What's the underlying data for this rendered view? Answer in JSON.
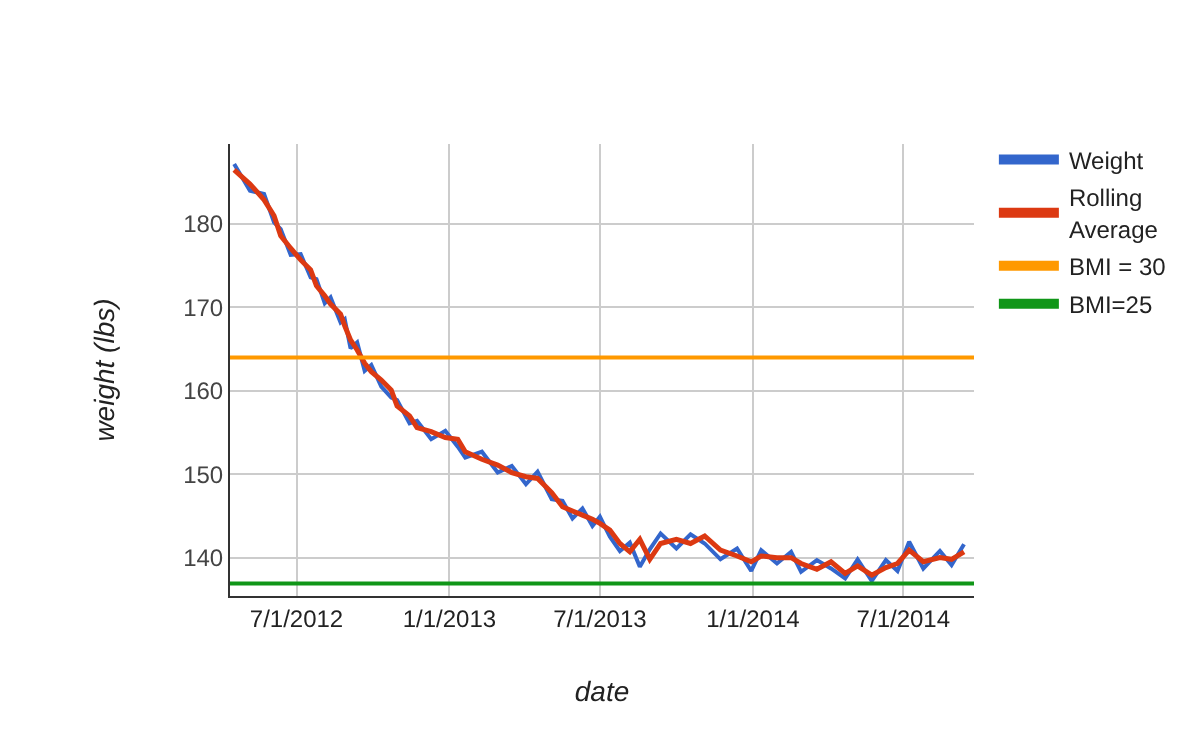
{
  "chart_data": {
    "type": "line",
    "xlabel": "date",
    "ylabel": "weight (lbs)",
    "x": [
      "2012-04-17",
      "2012-05-06",
      "2012-05-23",
      "2012-06-04",
      "2012-06-12",
      "2012-06-24",
      "2012-07-06",
      "2012-07-18",
      "2012-07-25",
      "2012-08-04",
      "2012-08-11",
      "2012-08-23",
      "2012-08-28",
      "2012-09-04",
      "2012-09-12",
      "2012-09-21",
      "2012-09-29",
      "2012-10-11",
      "2012-10-23",
      "2012-10-30",
      "2012-11-14",
      "2012-11-23",
      "2012-12-10",
      "2012-12-27",
      "2013-01-11",
      "2013-01-20",
      "2013-02-09",
      "2013-02-28",
      "2013-03-17",
      "2013-04-03",
      "2013-04-17",
      "2013-05-04",
      "2013-05-17",
      "2013-05-29",
      "2013-06-10",
      "2013-06-22",
      "2013-07-01",
      "2013-07-13",
      "2013-07-25",
      "2013-08-06",
      "2013-08-18",
      "2013-08-30",
      "2013-09-12",
      "2013-10-01",
      "2013-10-18",
      "2013-11-04",
      "2013-11-23",
      "2013-12-13",
      "2013-12-30",
      "2014-01-11",
      "2014-01-30",
      "2014-02-16",
      "2014-02-28",
      "2014-03-19",
      "2014-04-05",
      "2014-04-22",
      "2014-05-07",
      "2014-05-24",
      "2014-06-10",
      "2014-06-24",
      "2014-07-08",
      "2014-07-25",
      "2014-08-14",
      "2014-08-28",
      "2014-09-12"
    ],
    "series": [
      {
        "name": "Weight",
        "color": "#3366cc",
        "values": [
          187.2,
          184.0,
          183.6,
          180.2,
          179.4,
          176.3,
          176.4,
          173.6,
          173.4,
          170.5,
          171.2,
          168.2,
          168.6,
          165.1,
          165.8,
          162.4,
          163.1,
          160.5,
          159.2,
          158.9,
          156.1,
          156.4,
          154.2,
          155.2,
          153.3,
          152.0,
          152.7,
          150.2,
          151.0,
          148.8,
          150.3,
          147.0,
          146.8,
          144.7,
          145.9,
          143.8,
          144.9,
          142.5,
          140.8,
          141.8,
          138.9,
          141.0,
          142.9,
          141.1,
          142.8,
          141.7,
          139.8,
          141.1,
          138.4,
          140.9,
          139.3,
          140.7,
          138.3,
          139.7,
          138.7,
          137.5,
          139.8,
          137.2,
          139.7,
          138.4,
          141.9,
          138.7,
          140.8,
          139.1,
          141.6
        ]
      },
      {
        "name": "Rolling Average",
        "color": "#dc3912",
        "values": [
          186.5,
          184.8,
          182.9,
          181.0,
          178.6,
          177.1,
          175.7,
          174.5,
          172.6,
          171.4,
          170.4,
          169.2,
          167.8,
          166.1,
          164.9,
          163.3,
          162.3,
          161.3,
          160.1,
          158.2,
          157.0,
          155.6,
          155.1,
          154.4,
          154.2,
          152.7,
          151.8,
          151.1,
          150.2,
          149.7,
          149.5,
          147.8,
          146.1,
          145.6,
          145.1,
          144.6,
          144.1,
          143.3,
          141.7,
          140.7,
          142.2,
          139.8,
          141.7,
          142.2,
          141.7,
          142.6,
          140.9,
          140.2,
          139.5,
          140.2,
          140.0,
          140.0,
          139.3,
          138.6,
          139.5,
          138.1,
          139.0,
          137.9,
          138.8,
          139.3,
          140.9,
          139.5,
          140.0,
          139.8,
          140.7
        ]
      },
      {
        "name": "BMI = 30",
        "color": "#ff9900",
        "x": [
          "2012-04-12",
          "2014-09-24"
        ],
        "values": [
          164,
          164
        ]
      },
      {
        "name": "BMI=25",
        "color": "#109618",
        "x": [
          "2012-04-12",
          "2014-09-24"
        ],
        "values": [
          136.9,
          136.9
        ]
      }
    ],
    "xlim": [
      "2012-04-12",
      "2014-09-24"
    ],
    "xticks": [
      {
        "value": "2012-07-01",
        "label": "7/1/2012"
      },
      {
        "value": "2013-01-01",
        "label": "1/1/2013"
      },
      {
        "value": "2013-07-01",
        "label": "7/1/2013"
      },
      {
        "value": "2014-01-01",
        "label": "1/1/2014"
      },
      {
        "value": "2014-07-01",
        "label": "7/1/2014"
      }
    ],
    "ylim": [
      135.4,
      189.6
    ],
    "yticks": [
      140,
      150,
      160,
      170,
      180
    ],
    "grid": true,
    "legend": "right",
    "marker": "none",
    "line_style": "solid"
  }
}
